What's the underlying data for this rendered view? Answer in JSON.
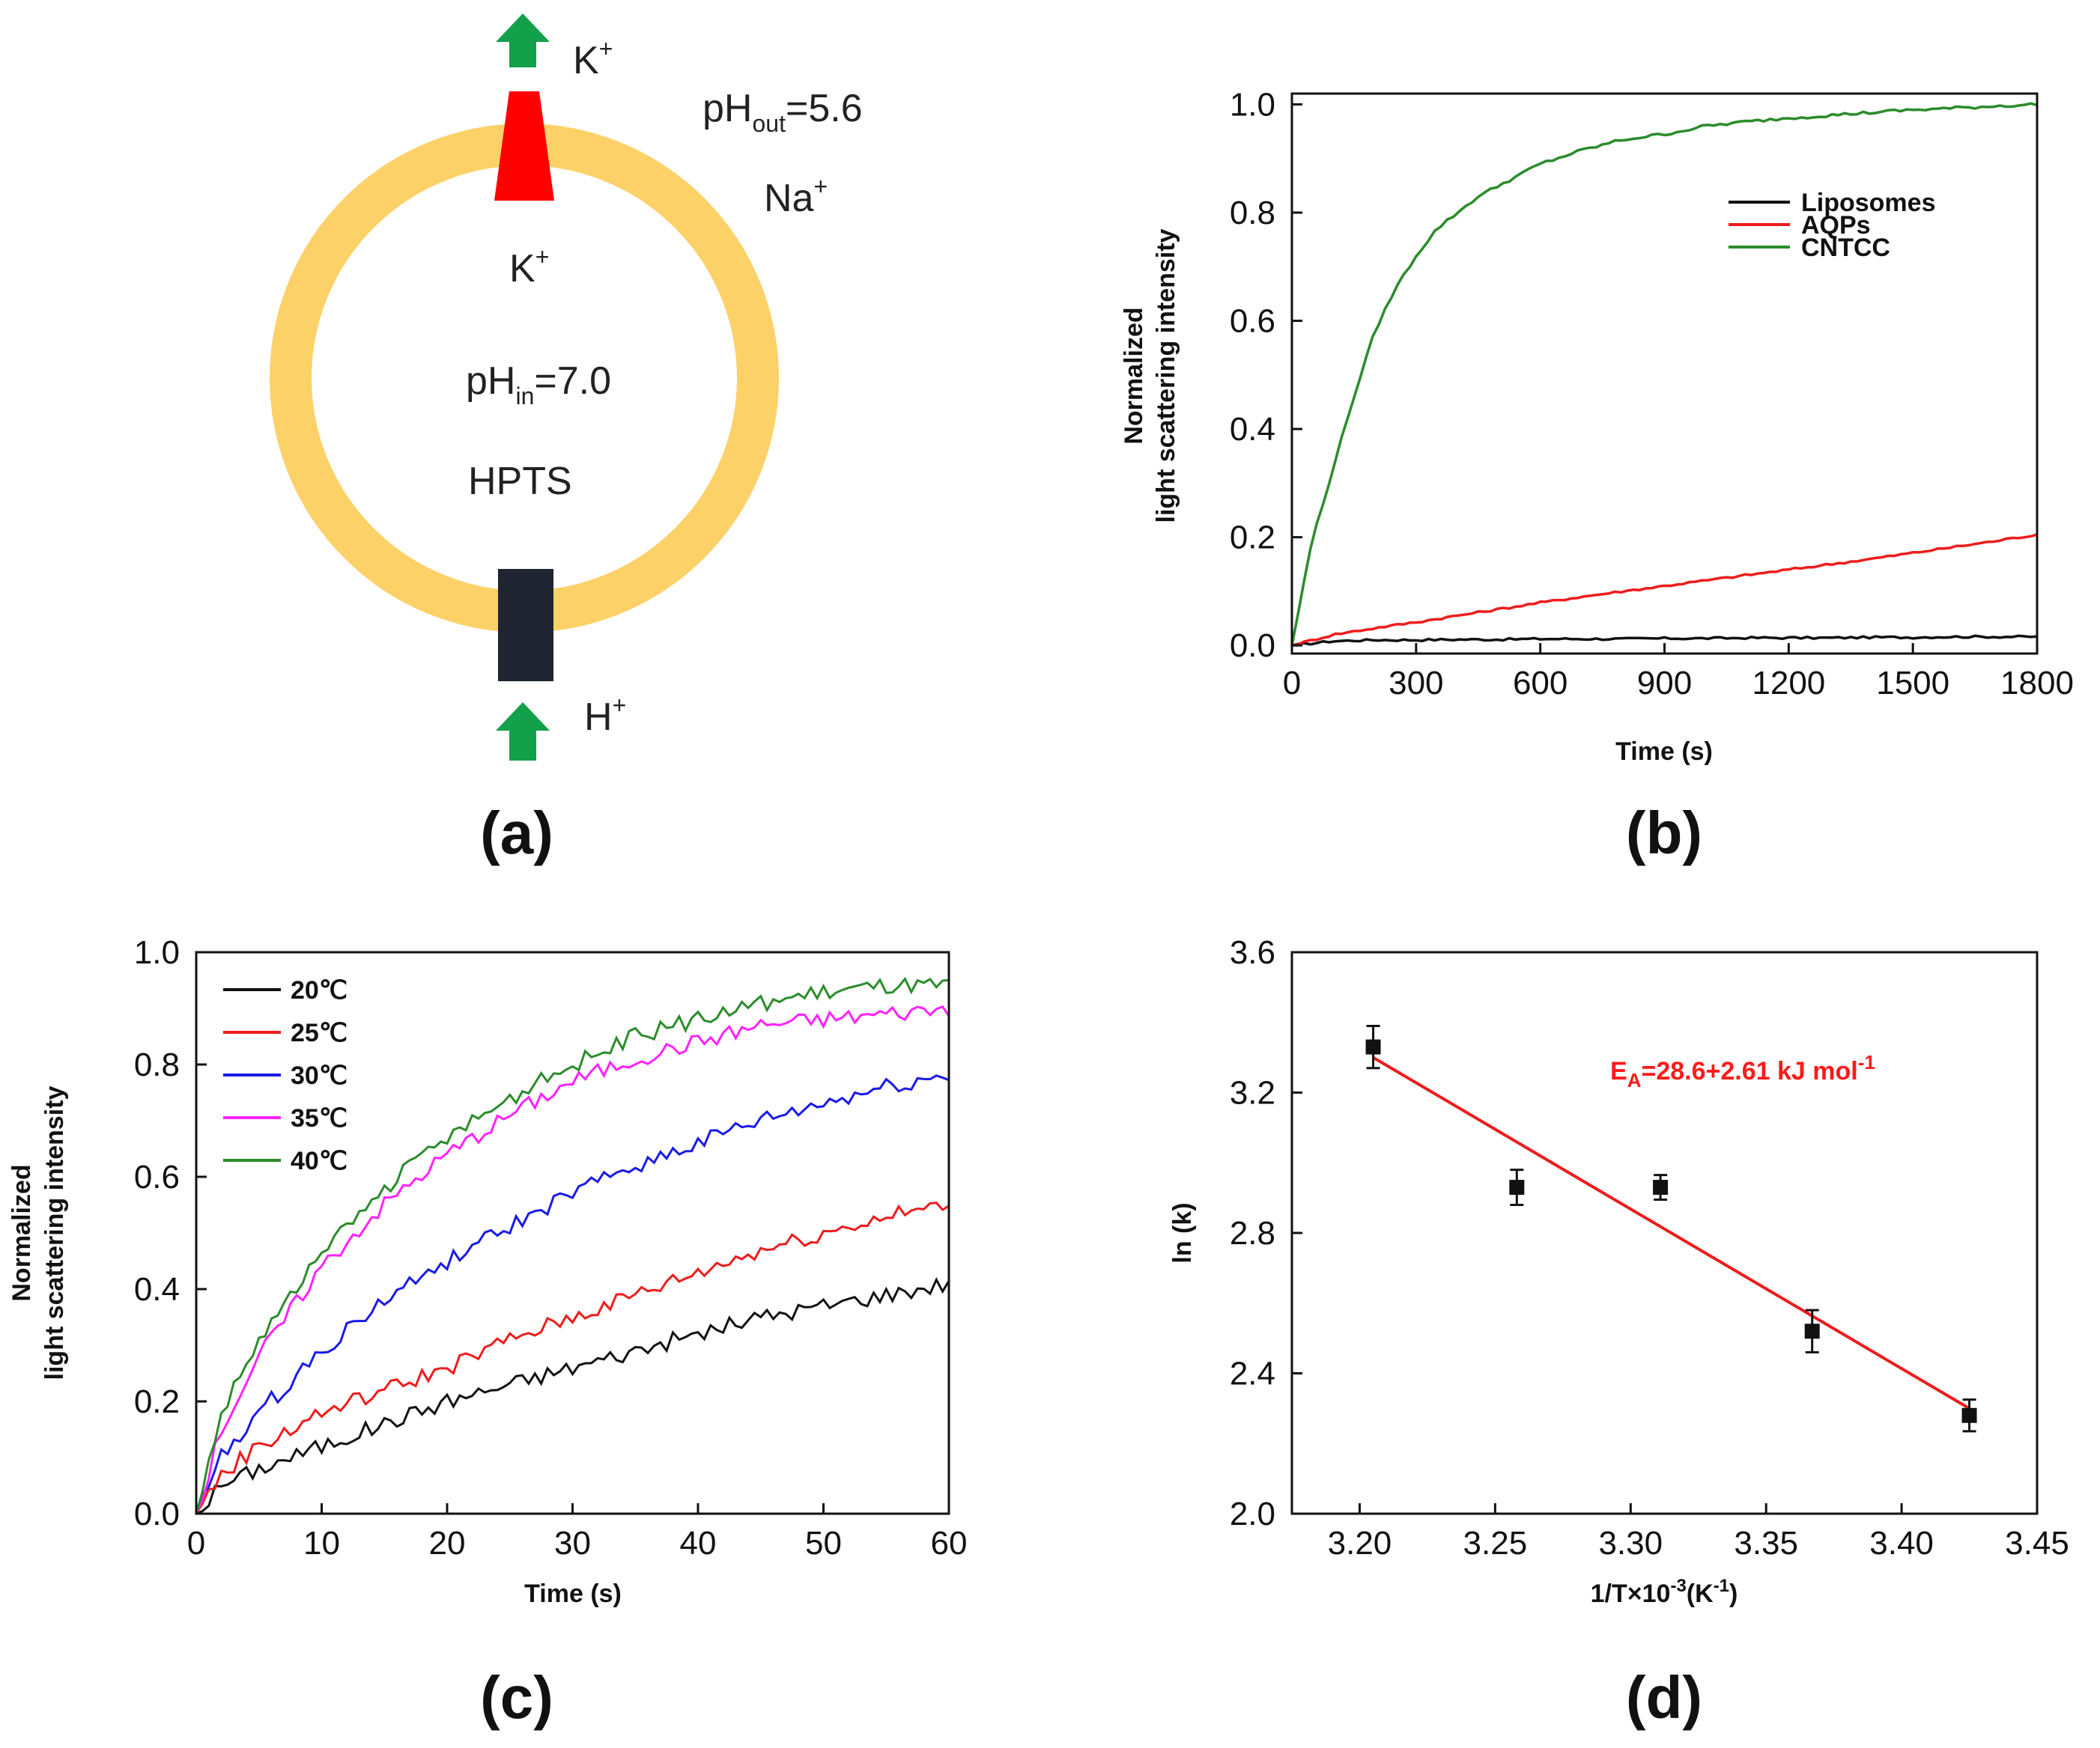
{
  "diagram": {
    "top_ion": "K",
    "top_ion_sup": "+",
    "ph_out_prefix": "pH",
    "ph_out_sub": "out",
    "ph_out_value": "=5.6",
    "outer_ion": "Na",
    "outer_ion_sup": "+",
    "inner_ion": "K",
    "inner_ion_sup": "+",
    "ph_in_prefix": "pH",
    "ph_in_sub": "in",
    "ph_in_value": "=7.0",
    "dye": "HPTS",
    "bottom_ion": "H",
    "bottom_ion_sup": "+",
    "colors": {
      "membrane": "#fcd167",
      "channel_top": "#ff0000",
      "channel_bottom": "#1f2530",
      "arrow": "#12a04a"
    }
  },
  "panel_labels": [
    "(a)",
    "(b)",
    "(c)",
    "(d)"
  ],
  "chart_data": [
    {
      "id": "b",
      "type": "line",
      "xlabel": "Time (s)",
      "ylabel_line1": "Normalized",
      "ylabel_line2": "light scattering intensity",
      "xlim": [
        0,
        1800
      ],
      "ylim": [
        0,
        1.0
      ],
      "xticks": [
        0,
        300,
        600,
        900,
        1200,
        1500,
        1800
      ],
      "yticks": [
        "0.0",
        "0.2",
        "0.4",
        "0.6",
        "0.8",
        "1.0"
      ],
      "legend_position": "top-right",
      "series": [
        {
          "name": "Liposomes",
          "color": "#111111",
          "x": [
            0,
            100,
            200,
            300,
            400,
            500,
            600,
            700,
            800,
            900,
            1000,
            1100,
            1200,
            1300,
            1400,
            1500,
            1600,
            1700,
            1800
          ],
          "y": [
            0.0,
            0.008,
            0.01,
            0.01,
            0.011,
            0.011,
            0.012,
            0.012,
            0.012,
            0.013,
            0.013,
            0.014,
            0.014,
            0.014,
            0.015,
            0.015,
            0.016,
            0.016,
            0.016
          ]
        },
        {
          "name": "AQPs",
          "color": "#ee1c1c",
          "x": [
            0,
            100,
            200,
            300,
            400,
            500,
            600,
            700,
            800,
            900,
            1000,
            1100,
            1200,
            1300,
            1400,
            1500,
            1600,
            1700,
            1800
          ],
          "y": [
            0.0,
            0.02,
            0.032,
            0.043,
            0.055,
            0.067,
            0.079,
            0.09,
            0.1,
            0.11,
            0.12,
            0.13,
            0.14,
            0.15,
            0.16,
            0.171,
            0.182,
            0.193,
            0.205
          ]
        },
        {
          "name": "CNTCC",
          "color": "#2b8c2b",
          "x": [
            0,
            25,
            50,
            75,
            100,
            150,
            200,
            250,
            300,
            350,
            400,
            450,
            500,
            600,
            700,
            800,
            900,
            1000,
            1100,
            1200,
            1300,
            1400,
            1500,
            1600,
            1700,
            1800
          ],
          "y": [
            0.0,
            0.1,
            0.2,
            0.26,
            0.33,
            0.46,
            0.58,
            0.66,
            0.72,
            0.77,
            0.8,
            0.83,
            0.85,
            0.89,
            0.915,
            0.935,
            0.945,
            0.96,
            0.968,
            0.975,
            0.98,
            0.985,
            0.99,
            0.993,
            0.997,
            1.0
          ]
        }
      ]
    },
    {
      "id": "c",
      "type": "line",
      "xlabel": "Time (s)",
      "ylabel_line1": "Normalized",
      "ylabel_line2": "light scattering intensity",
      "xlim": [
        0,
        60
      ],
      "ylim": [
        0,
        1.0
      ],
      "xticks": [
        0,
        10,
        20,
        30,
        40,
        50,
        60
      ],
      "yticks": [
        "0.0",
        "0.2",
        "0.4",
        "0.6",
        "0.8",
        "1.0"
      ],
      "legend_position": "top-left",
      "series": [
        {
          "name": "20℃",
          "color": "#111111",
          "x": [
            0,
            2,
            5,
            10,
            15,
            20,
            25,
            30,
            35,
            40,
            45,
            50,
            55,
            60
          ],
          "y": [
            0.0,
            0.05,
            0.08,
            0.12,
            0.16,
            0.2,
            0.23,
            0.26,
            0.29,
            0.32,
            0.35,
            0.37,
            0.39,
            0.41
          ]
        },
        {
          "name": "25℃",
          "color": "#ee1c1c",
          "x": [
            0,
            2,
            5,
            10,
            15,
            20,
            25,
            30,
            35,
            40,
            45,
            50,
            55,
            60
          ],
          "y": [
            0.0,
            0.07,
            0.12,
            0.18,
            0.22,
            0.26,
            0.31,
            0.35,
            0.39,
            0.43,
            0.47,
            0.5,
            0.53,
            0.55
          ]
        },
        {
          "name": "30℃",
          "color": "#1a1ae6",
          "x": [
            0,
            2,
            5,
            10,
            15,
            20,
            25,
            30,
            35,
            40,
            45,
            50,
            55,
            60
          ],
          "y": [
            0.0,
            0.1,
            0.18,
            0.29,
            0.38,
            0.45,
            0.51,
            0.57,
            0.62,
            0.66,
            0.7,
            0.73,
            0.76,
            0.78
          ]
        },
        {
          "name": "35℃",
          "color": "#ff22ff",
          "x": [
            0,
            2,
            5,
            10,
            15,
            20,
            25,
            30,
            35,
            40,
            45,
            50,
            55,
            60
          ],
          "y": [
            0.0,
            0.15,
            0.28,
            0.44,
            0.55,
            0.64,
            0.71,
            0.77,
            0.81,
            0.84,
            0.87,
            0.88,
            0.89,
            0.9
          ]
        },
        {
          "name": "40℃",
          "color": "#2b8c2b",
          "x": [
            0,
            2,
            5,
            10,
            15,
            20,
            25,
            30,
            35,
            40,
            45,
            50,
            55,
            60
          ],
          "y": [
            0.0,
            0.18,
            0.31,
            0.46,
            0.58,
            0.67,
            0.74,
            0.8,
            0.85,
            0.88,
            0.91,
            0.93,
            0.94,
            0.94
          ]
        }
      ]
    },
    {
      "id": "d",
      "type": "scatter",
      "xlabel_prefix": "1/T×10",
      "xlabel_exp": "-3",
      "xlabel_mid": "(K",
      "xlabel_exp2": "-1",
      "xlabel_suffix": ")",
      "ylabel": "ln (k)",
      "xlim": [
        3.175,
        3.45
      ],
      "ylim": [
        2.0,
        3.6
      ],
      "xticks": [
        "3.20",
        "3.25",
        "3.30",
        "3.35",
        "3.40",
        "3.45"
      ],
      "yticks": [
        "2.0",
        "2.4",
        "2.8",
        "3.2",
        "3.6"
      ],
      "annotation_main": "E",
      "annotation_sub": "A",
      "annotation_rest": "=28.6+2.61 kJ mol",
      "annotation_exp": "-1",
      "points": [
        {
          "x": 3.205,
          "y": 3.33,
          "err": 0.06
        },
        {
          "x": 3.258,
          "y": 2.93,
          "err": 0.05
        },
        {
          "x": 3.311,
          "y": 2.93,
          "err": 0.035
        },
        {
          "x": 3.367,
          "y": 2.52,
          "err": 0.06
        },
        {
          "x": 3.425,
          "y": 2.28,
          "err": 0.045
        }
      ],
      "fit": {
        "x": [
          3.205,
          3.425
        ],
        "y": [
          3.3,
          2.3
        ],
        "color": "#ee1c1c"
      }
    }
  ]
}
